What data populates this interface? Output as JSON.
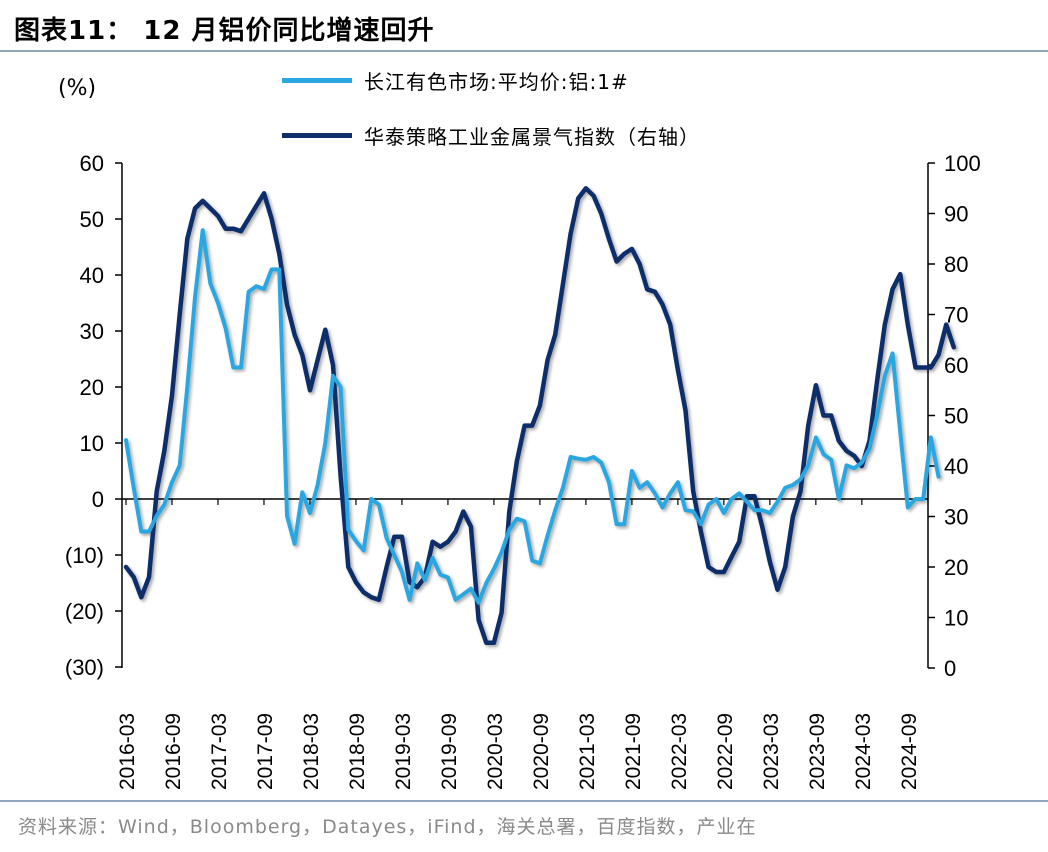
{
  "title": "图表11： 12 月铝价同比增速回升",
  "unit_label": "(%)",
  "source": "资料来源：Wind，Bloomberg，Datayes，iFind，海关总署，百度指数，产业在",
  "colors": {
    "series1": "#2aa7e0",
    "series2": "#0e2f6b",
    "axis": "#000000",
    "rule": "#8fa6bf"
  },
  "chart_data": {
    "type": "line",
    "title": "12 月铝价同比增速回升",
    "x_ticks": [
      "2016-03",
      "2016-09",
      "2017-03",
      "2017-09",
      "2018-03",
      "2018-09",
      "2019-03",
      "2019-09",
      "2020-03",
      "2020-09",
      "2021-03",
      "2021-09",
      "2022-03",
      "2022-09",
      "2023-03",
      "2023-09",
      "2024-03",
      "2024-09"
    ],
    "y_left": {
      "min": -30,
      "max": 60,
      "step": 10,
      "tick_labels": [
        "(30)",
        "(20)",
        "(10)",
        "0",
        "10",
        "20",
        "30",
        "40",
        "50",
        "60"
      ]
    },
    "y_right": {
      "min": 0,
      "max": 100,
      "step": 10,
      "tick_labels": [
        "0",
        "10",
        "20",
        "30",
        "40",
        "50",
        "60",
        "70",
        "80",
        "90",
        "100"
      ]
    },
    "series": [
      {
        "name": "长江有色市场:平均价:铝:1#",
        "axis": "left",
        "values": [
          10.5,
          2,
          -5.8,
          -5.8,
          -3,
          -1,
          3,
          6,
          20,
          36,
          48,
          38.5,
          35,
          30.5,
          23.5,
          23.5,
          37,
          38,
          37.5,
          41,
          41,
          -3,
          -8,
          1.2,
          -2.5,
          2.5,
          10,
          22,
          20,
          -5.5,
          -7.5,
          -9.2,
          0,
          -1,
          -7,
          -10,
          -13,
          -18,
          -11.5,
          -14.5,
          -10.5,
          -13.5,
          -14,
          -18,
          -17,
          -16,
          -18.5,
          -15,
          -12.5,
          -9.5,
          -5.5,
          -3.5,
          -4,
          -11,
          -11.5,
          -6.5,
          -2,
          2,
          7.5,
          7.2,
          7,
          7.5,
          6.5,
          3,
          -4.5,
          -4.5,
          5,
          2,
          3,
          1,
          -1.5,
          1,
          3,
          -2,
          -2.2,
          -4.5,
          -1,
          0,
          -2.5,
          0,
          1,
          -0.5,
          -2,
          -2,
          -2.5,
          -0.5,
          2,
          2.5,
          3.5,
          6,
          11,
          8,
          7,
          0,
          6,
          5.5,
          6.5,
          9,
          15,
          22,
          26,
          12,
          -1.5,
          0,
          0,
          11,
          4
        ],
        "labels": [
          "长江有色市场:平均价:铝:1#"
        ]
      },
      {
        "name": "华泰策略工业金属景气指数（右轴）",
        "axis": "right",
        "values": [
          20,
          18,
          14,
          18,
          35,
          43,
          54,
          70,
          85,
          91,
          92.5,
          91,
          89.5,
          87,
          87,
          86.5,
          89,
          91.5,
          94,
          89,
          82,
          72,
          66,
          62,
          55,
          61,
          67,
          60,
          38,
          20,
          17,
          15,
          14,
          13.5,
          20,
          26,
          26,
          17,
          16,
          18,
          25,
          24,
          25,
          27,
          31,
          28,
          9.5,
          5,
          5,
          11,
          31,
          41,
          48,
          48,
          52,
          61,
          66,
          76,
          86,
          93,
          95,
          93.5,
          90,
          85,
          80.5,
          82,
          83,
          80,
          75,
          74.5,
          72,
          68,
          59,
          51,
          35,
          27,
          20,
          19,
          19,
          22,
          25,
          34,
          34,
          28,
          21,
          15.5,
          20,
          30,
          35,
          48,
          56,
          50,
          50,
          45,
          43,
          42,
          40,
          45,
          57,
          68,
          75,
          78,
          68,
          59.5,
          59.5,
          59.5,
          62,
          68,
          63.5
        ],
        "labels": [
          "华泰策略工业金属景气指数（右轴）"
        ]
      }
    ],
    "legend": [
      "长江有色市场:平均价:铝:1#",
      "华泰策略工业金属景气指数（右轴）"
    ]
  }
}
